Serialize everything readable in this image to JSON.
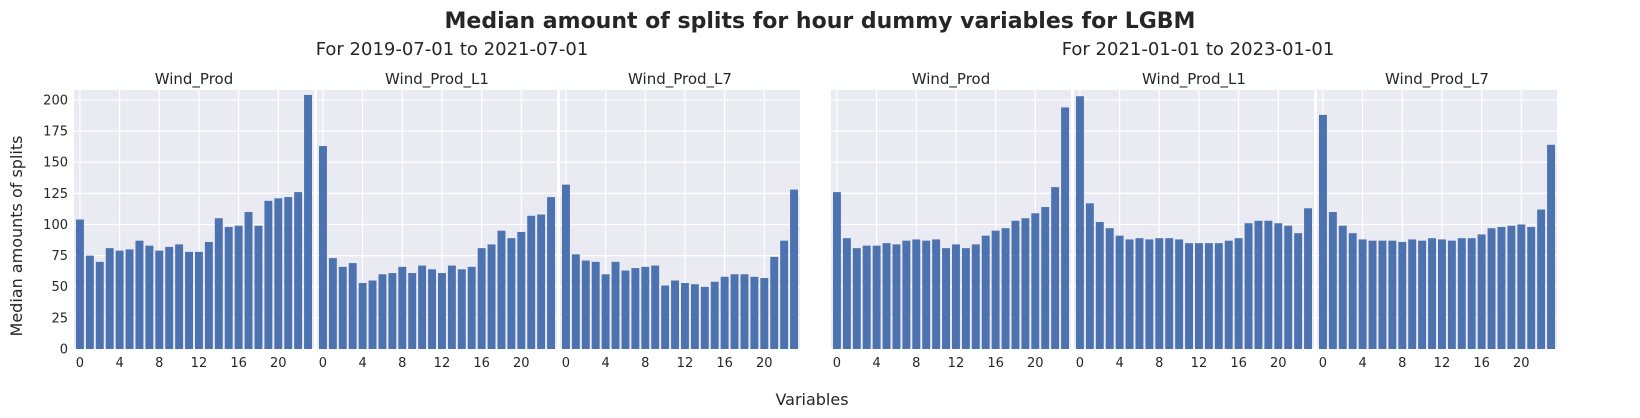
{
  "figure": {
    "title": "Median amount of splits for hour dummy variables for LGBM",
    "xlabel": "Variables",
    "ylabel": "Median amounts of splits"
  },
  "chart_data": [
    {
      "type": "bar",
      "group_title": "For 2019-07-01 to 2021-07-01",
      "title": "Wind_Prod",
      "categories": [
        0,
        1,
        2,
        3,
        4,
        5,
        6,
        7,
        8,
        9,
        10,
        11,
        12,
        13,
        14,
        15,
        16,
        17,
        18,
        19,
        20,
        21,
        22,
        23
      ],
      "values": [
        104,
        75,
        70,
        81,
        79,
        80,
        87,
        83,
        79,
        82,
        84,
        78,
        78,
        86,
        105,
        98,
        99,
        110,
        99,
        119,
        121,
        122,
        126,
        204
      ],
      "xticks": [
        0,
        4,
        8,
        12,
        16,
        20
      ],
      "ylim": [
        0,
        208
      ],
      "yticks": [
        0,
        25,
        50,
        75,
        100,
        125,
        150,
        175,
        200
      ],
      "bar_color": "#4c72b0",
      "grid": true
    },
    {
      "type": "bar",
      "title": "Wind_Prod_L1",
      "categories": [
        0,
        1,
        2,
        3,
        4,
        5,
        6,
        7,
        8,
        9,
        10,
        11,
        12,
        13,
        14,
        15,
        16,
        17,
        18,
        19,
        20,
        21,
        22,
        23
      ],
      "values": [
        163,
        73,
        66,
        69,
        53,
        55,
        60,
        61,
        66,
        61,
        67,
        64,
        61,
        67,
        64,
        66,
        81,
        84,
        95,
        89,
        94,
        107,
        108,
        122
      ],
      "xticks": [
        0,
        4,
        8,
        12,
        16,
        20
      ],
      "ylim": [
        0,
        208
      ],
      "bar_color": "#4c72b0",
      "grid": true
    },
    {
      "type": "bar",
      "title": "Wind_Prod_L7",
      "categories": [
        0,
        1,
        2,
        3,
        4,
        5,
        6,
        7,
        8,
        9,
        10,
        11,
        12,
        13,
        14,
        15,
        16,
        17,
        18,
        19,
        20,
        21,
        22,
        23
      ],
      "values": [
        132,
        76,
        71,
        70,
        60,
        70,
        63,
        65,
        66,
        67,
        51,
        55,
        53,
        52,
        50,
        54,
        58,
        60,
        60,
        58,
        57,
        74,
        87,
        128
      ],
      "xticks": [
        0,
        4,
        8,
        12,
        16,
        20
      ],
      "ylim": [
        0,
        208
      ],
      "bar_color": "#4c72b0",
      "grid": true
    },
    {
      "type": "bar",
      "group_title": "For 2021-01-01 to 2023-01-01",
      "title": "Wind_Prod",
      "categories": [
        0,
        1,
        2,
        3,
        4,
        5,
        6,
        7,
        8,
        9,
        10,
        11,
        12,
        13,
        14,
        15,
        16,
        17,
        18,
        19,
        20,
        21,
        22,
        23
      ],
      "values": [
        126,
        89,
        81,
        83,
        83,
        85,
        84,
        87,
        88,
        87,
        88,
        81,
        84,
        81,
        84,
        91,
        95,
        97,
        103,
        105,
        109,
        114,
        130,
        194
      ],
      "xticks": [
        0,
        4,
        8,
        12,
        16,
        20
      ],
      "ylim": [
        0,
        208
      ],
      "bar_color": "#4c72b0",
      "grid": true
    },
    {
      "type": "bar",
      "title": "Wind_Prod_L1",
      "categories": [
        0,
        1,
        2,
        3,
        4,
        5,
        6,
        7,
        8,
        9,
        10,
        11,
        12,
        13,
        14,
        15,
        16,
        17,
        18,
        19,
        20,
        21,
        22,
        23
      ],
      "values": [
        203,
        117,
        102,
        97,
        91,
        88,
        89,
        88,
        89,
        89,
        88,
        85,
        85,
        85,
        85,
        87,
        89,
        101,
        103,
        103,
        101,
        99,
        93,
        113
      ],
      "xticks": [
        0,
        4,
        8,
        12,
        16,
        20
      ],
      "ylim": [
        0,
        208
      ],
      "bar_color": "#4c72b0",
      "grid": true
    },
    {
      "type": "bar",
      "title": "Wind_Prod_L7",
      "categories": [
        0,
        1,
        2,
        3,
        4,
        5,
        6,
        7,
        8,
        9,
        10,
        11,
        12,
        13,
        14,
        15,
        16,
        17,
        18,
        19,
        20,
        21,
        22,
        23
      ],
      "values": [
        188,
        110,
        99,
        93,
        88,
        87,
        87,
        87,
        86,
        88,
        87,
        89,
        88,
        87,
        89,
        89,
        92,
        97,
        98,
        99,
        100,
        98,
        112,
        164
      ],
      "xticks": [
        0,
        4,
        8,
        12,
        16,
        20
      ],
      "ylim": [
        0,
        208
      ],
      "bar_color": "#4c72b0",
      "grid": true
    }
  ]
}
